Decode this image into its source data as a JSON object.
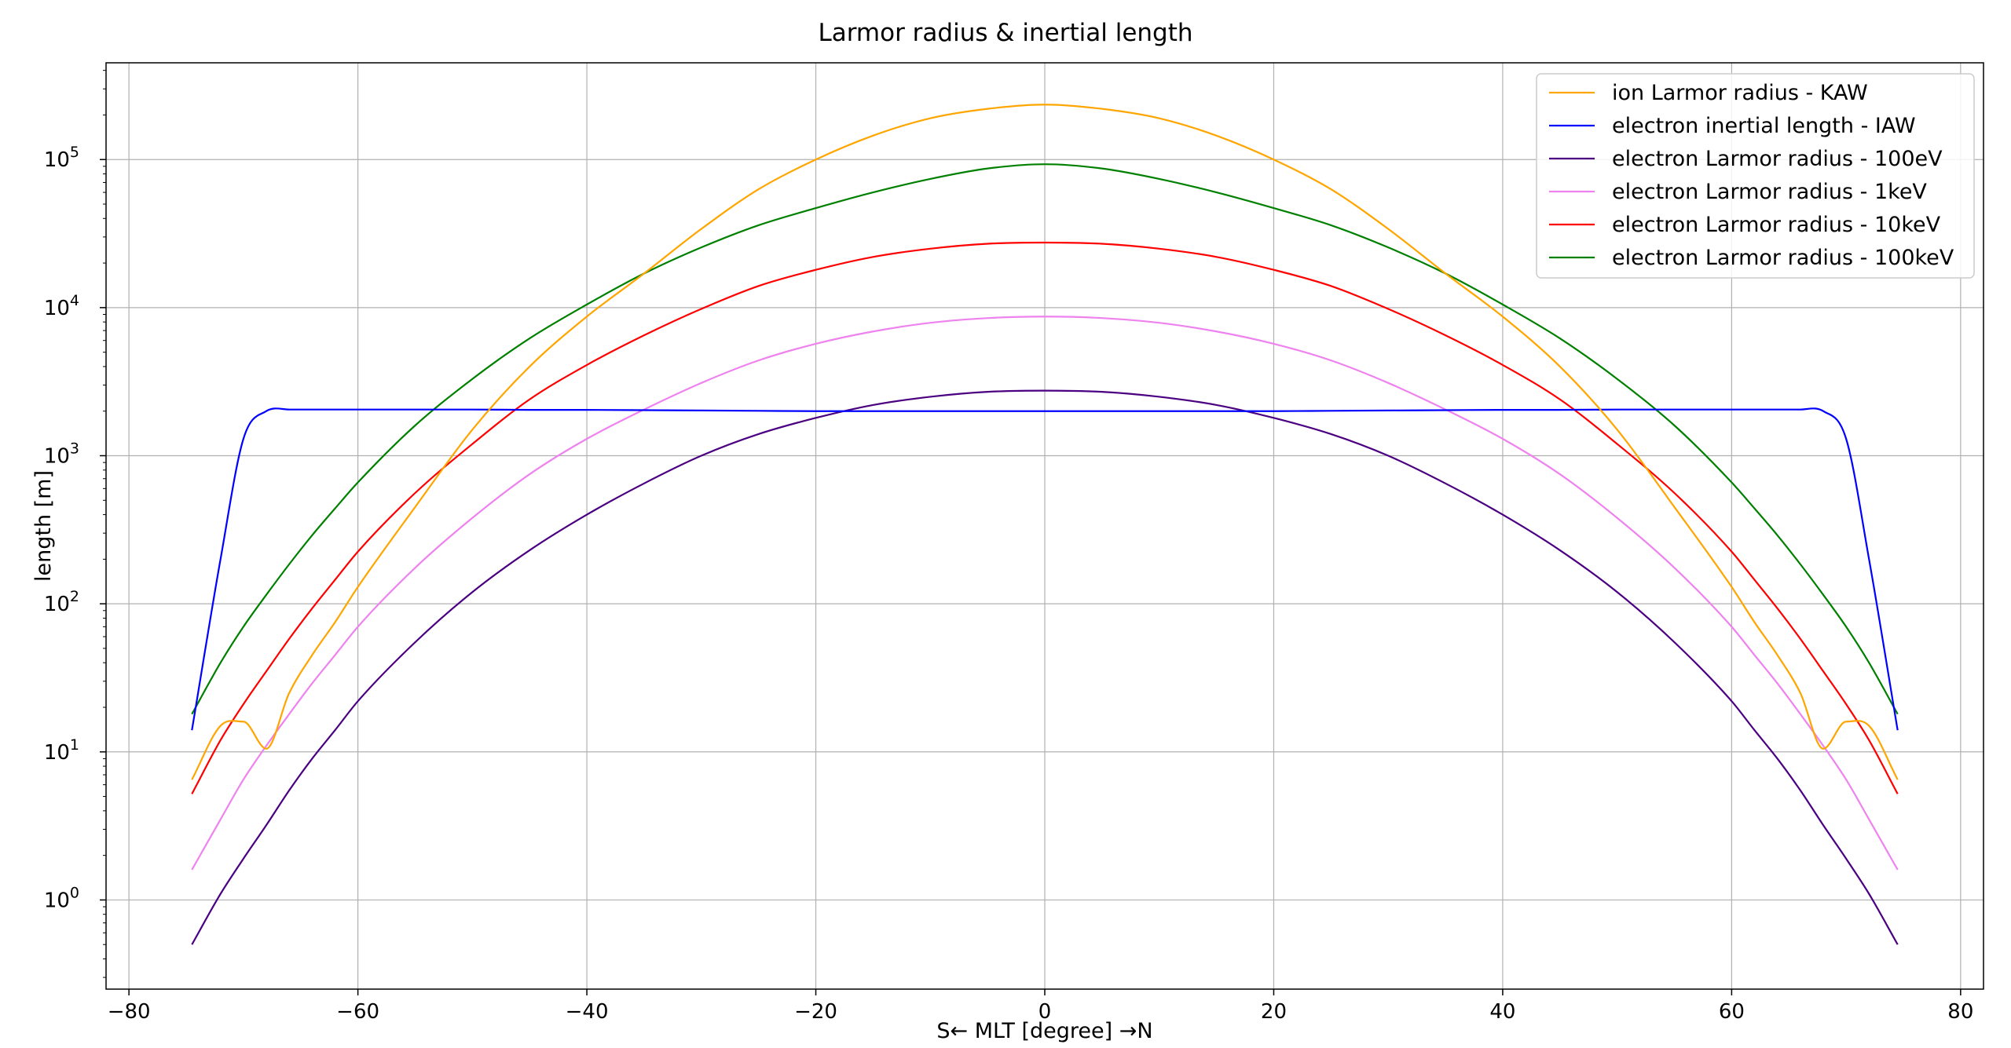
{
  "chart_data": {
    "type": "line",
    "title": "Larmor radius & inertial length",
    "xlabel": "S← MLT [degree] →N",
    "ylabel": "length [m]",
    "xlim": [
      -82,
      82
    ],
    "ylim": [
      0.25,
      450000
    ],
    "yscale": "log",
    "grid": true,
    "legend_position": "top-right",
    "x_ticks": [
      -80,
      -60,
      -40,
      -20,
      0,
      20,
      40,
      60,
      80
    ],
    "x_tick_labels": [
      "−80",
      "−60",
      "−40",
      "−20",
      "0",
      "20",
      "40",
      "60",
      "80"
    ],
    "y_ticks": [
      {
        "value": 1,
        "base": "10",
        "exp": "0"
      },
      {
        "value": 10,
        "base": "10",
        "exp": "1"
      },
      {
        "value": 100,
        "base": "10",
        "exp": "2"
      },
      {
        "value": 1000,
        "base": "10",
        "exp": "3"
      },
      {
        "value": 10000,
        "base": "10",
        "exp": "4"
      },
      {
        "value": 100000,
        "base": "10",
        "exp": "5"
      }
    ],
    "x": [
      -74.5,
      -72,
      -70,
      -68,
      -66,
      -64,
      -62,
      -60,
      -55,
      -50,
      -45,
      -40,
      -35,
      -30,
      -25,
      -20,
      -15,
      -10,
      -5,
      0,
      5,
      10,
      15,
      20,
      25,
      30,
      35,
      40,
      45,
      50,
      55,
      60,
      62,
      64,
      66,
      68,
      70,
      72,
      74.5
    ],
    "series": [
      {
        "name": "ion Larmor radius - KAW",
        "color": "#FFA500",
        "values": [
          6.5,
          15,
          16,
          10.5,
          25,
          45,
          75,
          130,
          450,
          1500,
          4000,
          8700,
          17000,
          34000,
          63000,
          100000,
          145000,
          190000,
          220000,
          235000,
          220000,
          190000,
          145000,
          100000,
          63000,
          34000,
          17000,
          8700,
          4000,
          1500,
          450,
          130,
          75,
          45,
          25,
          10.5,
          16,
          15,
          6.5
        ]
      },
      {
        "name": "electron inertial length - IAW",
        "color": "#0000FF",
        "values": [
          14,
          200,
          1300,
          2000,
          2050,
          2050,
          2050,
          2050,
          2050,
          2050,
          2040,
          2040,
          2030,
          2020,
          2010,
          2000,
          2000,
          2000,
          2000,
          2000,
          2000,
          2000,
          2000,
          2000,
          2010,
          2020,
          2030,
          2040,
          2040,
          2050,
          2050,
          2050,
          2050,
          2050,
          2050,
          2000,
          1300,
          200,
          14
        ]
      },
      {
        "name": "electron Larmor radius - 100eV",
        "color": "#4B0082",
        "values": [
          0.5,
          1.1,
          1.9,
          3.2,
          5.5,
          9,
          14,
          22,
          55,
          120,
          230,
          400,
          650,
          1000,
          1400,
          1800,
          2200,
          2500,
          2700,
          2750,
          2700,
          2500,
          2200,
          1800,
          1400,
          1000,
          650,
          400,
          230,
          120,
          55,
          22,
          14,
          9,
          5.5,
          3.2,
          1.9,
          1.1,
          0.5
        ]
      },
      {
        "name": "electron Larmor radius - 1keV",
        "color": "#EE82EE",
        "values": [
          1.6,
          3.5,
          6.5,
          11,
          18,
          29,
          45,
          70,
          175,
          380,
          750,
          1300,
          2050,
          3100,
          4400,
          5700,
          6900,
          7900,
          8500,
          8700,
          8500,
          7900,
          6900,
          5700,
          4400,
          3100,
          2050,
          1300,
          750,
          380,
          175,
          70,
          45,
          29,
          18,
          11,
          6.5,
          3.5,
          1.6
        ]
      },
      {
        "name": "electron Larmor radius - 10keV",
        "color": "#FF0000",
        "values": [
          5.2,
          12,
          21,
          35,
          58,
          93,
          145,
          225,
          560,
          1200,
          2400,
          4100,
          6500,
          9800,
          14000,
          18000,
          22000,
          25000,
          27000,
          27500,
          27000,
          25000,
          22000,
          18000,
          14000,
          9800,
          6500,
          4100,
          2400,
          1200,
          560,
          225,
          145,
          93,
          58,
          35,
          21,
          12,
          5.2
        ]
      },
      {
        "name": "electron Larmor radius - 100keV",
        "color": "#008000",
        "values": [
          18,
          40,
          70,
          115,
          185,
          290,
          440,
          660,
          1600,
          3300,
          6200,
          10500,
          17000,
          25500,
          36000,
          47000,
          60000,
          74000,
          87000,
          93000,
          87000,
          74000,
          60000,
          47000,
          36000,
          25500,
          17000,
          10500,
          6200,
          3300,
          1600,
          660,
          440,
          290,
          185,
          115,
          70,
          40,
          18
        ]
      }
    ]
  }
}
